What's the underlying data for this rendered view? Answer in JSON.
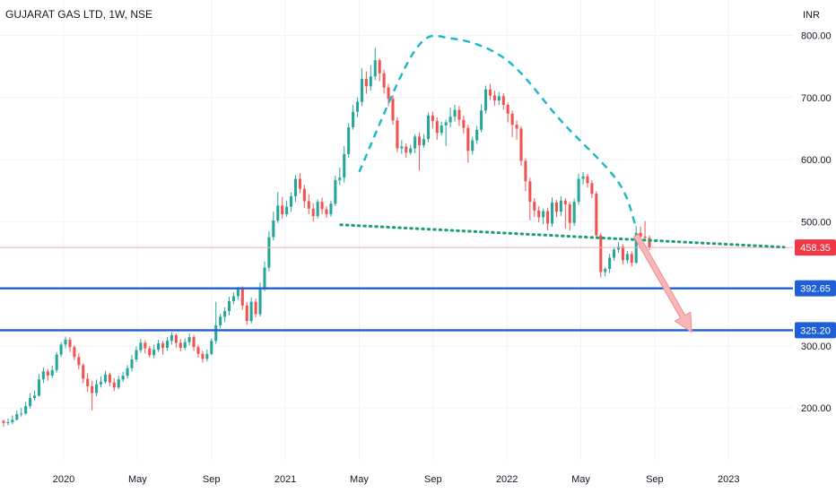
{
  "chart_data": {
    "type": "candlestick",
    "title": "GUJARAT GAS LTD, 1W, NSE",
    "currency_label": "INR",
    "y_range": [
      115,
      857
    ],
    "y_ticks": [
      "800.00",
      "700.00",
      "600.00",
      "500.00",
      "300.00",
      "200.00"
    ],
    "x_ticks": [
      "2020",
      "May",
      "Sep",
      "2021",
      "May",
      "Sep",
      "2022",
      "May",
      "Sep",
      "2023"
    ],
    "grid": true,
    "colors": {
      "up": "#26a69a",
      "down": "#ef5350",
      "support": "#1e5fd8",
      "current": "#f23645",
      "arc": "#17b8c8",
      "neckline": "#1d9e74"
    },
    "current_price": {
      "value": 458.35,
      "label": "458.35"
    },
    "support_levels": [
      {
        "value": 392.65,
        "label": "392.65"
      },
      {
        "value": 325.2,
        "label": "325.20"
      }
    ],
    "neckline": {
      "start": {
        "date": "2021-04",
        "value": 495
      },
      "end": {
        "date": "2023-04",
        "value": 459
      }
    },
    "arc": [
      {
        "date": "2021-05",
        "value": 580
      },
      {
        "date": "2021-08",
        "value": 775
      },
      {
        "date": "2021-10",
        "value": 795
      },
      {
        "date": "2022-01",
        "value": 760
      },
      {
        "date": "2022-04",
        "value": 660
      },
      {
        "date": "2022-07",
        "value": 565
      },
      {
        "date": "2022-08",
        "value": 490
      }
    ],
    "arrow": {
      "start": {
        "date": "2022-08",
        "value": 478
      },
      "end": {
        "date": "2022-11",
        "value": 322
      }
    },
    "candles": [
      [
        179,
        176,
        181,
        170
      ],
      [
        176,
        177,
        183,
        172
      ],
      [
        177,
        181,
        188,
        174
      ],
      [
        181,
        190,
        196,
        180
      ],
      [
        190,
        191,
        200,
        186
      ],
      [
        191,
        203,
        210,
        189
      ],
      [
        203,
        216,
        224,
        199
      ],
      [
        216,
        220,
        228,
        212
      ],
      [
        220,
        246,
        255,
        218
      ],
      [
        246,
        259,
        265,
        240
      ],
      [
        259,
        252,
        263,
        244
      ],
      [
        252,
        261,
        268,
        248
      ],
      [
        261,
        286,
        290,
        257
      ],
      [
        286,
        302,
        306,
        282
      ],
      [
        302,
        310,
        315,
        296
      ],
      [
        310,
        298,
        314,
        290
      ],
      [
        298,
        282,
        301,
        277
      ],
      [
        282,
        269,
        288,
        262
      ],
      [
        269,
        247,
        272,
        240
      ],
      [
        247,
        235,
        256,
        226
      ],
      [
        235,
        224,
        244,
        196
      ],
      [
        224,
        238,
        246,
        219
      ],
      [
        238,
        242,
        251,
        233
      ],
      [
        242,
        254,
        260,
        239
      ],
      [
        254,
        241,
        257,
        235
      ],
      [
        241,
        233,
        248,
        227
      ],
      [
        233,
        246,
        252,
        230
      ],
      [
        246,
        252,
        258,
        242
      ],
      [
        252,
        264,
        269,
        247
      ],
      [
        264,
        278,
        285,
        259
      ],
      [
        278,
        293,
        299,
        274
      ],
      [
        293,
        305,
        311,
        289
      ],
      [
        305,
        296,
        309,
        288
      ],
      [
        296,
        285,
        300,
        281
      ],
      [
        285,
        294,
        302,
        280
      ],
      [
        294,
        304,
        310,
        290
      ],
      [
        304,
        297,
        308,
        286
      ],
      [
        297,
        308,
        314,
        292
      ],
      [
        308,
        317,
        322,
        302
      ],
      [
        317,
        305,
        320,
        297
      ],
      [
        305,
        297,
        311,
        291
      ],
      [
        297,
        306,
        312,
        293
      ],
      [
        306,
        314,
        320,
        301
      ],
      [
        314,
        298,
        318,
        292
      ],
      [
        298,
        287,
        302,
        281
      ],
      [
        287,
        279,
        292,
        273
      ],
      [
        279,
        287,
        294,
        275
      ],
      [
        287,
        308,
        312,
        285
      ],
      [
        308,
        333,
        371,
        303
      ],
      [
        333,
        347,
        352,
        328
      ],
      [
        347,
        356,
        362,
        338
      ],
      [
        356,
        372,
        379,
        349
      ],
      [
        372,
        380,
        386,
        367
      ],
      [
        380,
        391,
        395,
        374
      ],
      [
        391,
        365,
        396,
        358
      ],
      [
        365,
        340,
        370,
        334
      ],
      [
        340,
        371,
        378,
        336
      ],
      [
        371,
        351,
        376,
        346
      ],
      [
        351,
        392,
        402,
        347
      ],
      [
        392,
        426,
        436,
        388
      ],
      [
        426,
        475,
        485,
        420
      ],
      [
        475,
        502,
        516,
        470
      ],
      [
        502,
        526,
        548,
        498
      ],
      [
        526,
        512,
        540,
        505
      ],
      [
        512,
        524,
        534,
        508
      ],
      [
        524,
        541,
        547,
        516
      ],
      [
        541,
        569,
        575,
        532
      ],
      [
        569,
        553,
        578,
        546
      ],
      [
        553,
        533,
        559,
        522
      ],
      [
        533,
        521,
        544,
        512
      ],
      [
        521,
        509,
        530,
        500
      ],
      [
        509,
        532,
        536,
        505
      ],
      [
        532,
        520,
        539,
        512
      ],
      [
        520,
        512,
        525,
        506
      ],
      [
        512,
        529,
        534,
        508
      ],
      [
        529,
        567,
        574,
        525
      ],
      [
        567,
        571,
        587,
        559
      ],
      [
        571,
        609,
        622,
        563
      ],
      [
        609,
        652,
        659,
        603
      ],
      [
        652,
        677,
        688,
        648
      ],
      [
        677,
        693,
        700,
        668
      ],
      [
        693,
        730,
        747,
        686
      ],
      [
        730,
        718,
        742,
        706
      ],
      [
        718,
        734,
        752,
        711
      ],
      [
        734,
        760,
        780,
        728
      ],
      [
        760,
        739,
        763,
        726
      ],
      [
        739,
        716,
        745,
        706
      ],
      [
        716,
        698,
        722,
        686
      ],
      [
        698,
        663,
        704,
        656
      ],
      [
        663,
        618,
        668,
        612
      ],
      [
        618,
        621,
        631,
        609
      ],
      [
        621,
        611,
        626,
        603
      ],
      [
        611,
        618,
        624,
        608
      ],
      [
        618,
        637,
        641,
        610
      ],
      [
        637,
        623,
        644,
        582
      ],
      [
        623,
        633,
        641,
        619
      ],
      [
        633,
        671,
        676,
        628
      ],
      [
        671,
        662,
        677,
        650
      ],
      [
        662,
        643,
        668,
        632
      ],
      [
        643,
        655,
        661,
        639
      ],
      [
        655,
        660,
        664,
        622
      ],
      [
        660,
        669,
        684,
        652
      ],
      [
        669,
        680,
        688,
        661
      ],
      [
        680,
        664,
        686,
        654
      ],
      [
        664,
        651,
        671,
        642
      ],
      [
        651,
        614,
        656,
        595
      ],
      [
        614,
        631,
        637,
        608
      ],
      [
        631,
        648,
        654,
        625
      ],
      [
        648,
        679,
        689,
        644
      ],
      [
        679,
        713,
        719,
        674
      ],
      [
        713,
        703,
        722,
        696
      ],
      [
        703,
        695,
        711,
        687
      ],
      [
        695,
        702,
        709,
        688
      ],
      [
        702,
        688,
        707,
        680
      ],
      [
        688,
        674,
        692,
        660
      ],
      [
        674,
        656,
        679,
        636
      ],
      [
        656,
        650,
        663,
        632
      ],
      [
        650,
        598,
        654,
        590
      ],
      [
        598,
        565,
        602,
        549
      ],
      [
        565,
        532,
        571,
        502
      ],
      [
        532,
        518,
        538,
        508
      ],
      [
        518,
        507,
        525,
        499
      ],
      [
        507,
        517,
        521,
        496
      ],
      [
        517,
        497,
        522,
        486
      ],
      [
        497,
        531,
        539,
        492
      ],
      [
        531,
        516,
        535,
        507
      ],
      [
        516,
        534,
        541,
        509
      ],
      [
        534,
        528,
        538,
        489
      ],
      [
        528,
        498,
        532,
        486
      ],
      [
        498,
        532,
        537,
        493
      ],
      [
        532,
        569,
        577,
        527
      ],
      [
        569,
        573,
        580,
        560
      ],
      [
        573,
        562,
        577,
        555
      ],
      [
        562,
        545,
        567,
        538
      ],
      [
        545,
        478,
        549,
        472
      ],
      [
        478,
        419,
        482,
        410
      ],
      [
        419,
        424,
        427,
        412
      ],
      [
        424,
        442,
        448,
        417
      ],
      [
        442,
        455,
        459,
        437
      ],
      [
        455,
        460,
        467,
        450
      ],
      [
        460,
        438,
        464,
        431
      ],
      [
        438,
        448,
        453,
        433
      ],
      [
        448,
        434,
        452,
        428
      ],
      [
        434,
        482,
        493,
        432
      ],
      [
        482,
        476,
        492,
        469
      ],
      [
        476,
        474,
        501,
        470
      ],
      [
        474,
        458,
        478,
        454
      ]
    ]
  }
}
